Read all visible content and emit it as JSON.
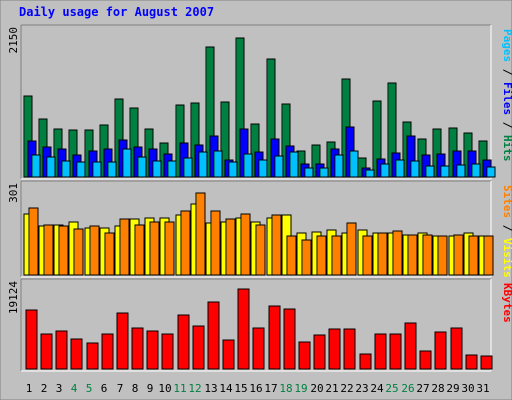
{
  "chart_data": {
    "type": "bar",
    "title": "Daily usage for August 2007",
    "days": [
      "1",
      "2",
      "3",
      "4",
      "5",
      "6",
      "7",
      "8",
      "9",
      "10",
      "11",
      "12",
      "13",
      "14",
      "15",
      "16",
      "17",
      "18",
      "19",
      "20",
      "21",
      "22",
      "23",
      "24",
      "25",
      "26",
      "27",
      "28",
      "29",
      "30",
      "31"
    ],
    "weekend_days": [
      "4",
      "5",
      "11",
      "12",
      "18",
      "19",
      "25",
      "26"
    ],
    "panels": [
      {
        "id": "top",
        "ymax_label": "2150",
        "ymax": 2150,
        "series_labels": [
          "Pages",
          "Files",
          "Hits"
        ],
        "series": [
          {
            "name": "Hits",
            "color": "#008040",
            "values": [
              1220,
              880,
              720,
              710,
              710,
              790,
              1180,
              1050,
              720,
              510,
              1090,
              1120,
              1970,
              1130,
              2110,
              810,
              1780,
              1110,
              400,
              480,
              530,
              1480,
              290,
              1150,
              1430,
              830,
              570,
              720,
              740,
              660,
              540
            ]
          },
          {
            "name": "Files",
            "color": "#0000ff",
            "values": [
              550,
              460,
              420,
              340,
              400,
              430,
              560,
              450,
              430,
              350,
              520,
              480,
              620,
              260,
              730,
              380,
              580,
              470,
              200,
              190,
              420,
              760,
              130,
              270,
              370,
              620,
              340,
              350,
              400,
              390,
              260
            ]
          },
          {
            "name": "Pages",
            "color": "#00c0ff",
            "values": [
              330,
              300,
              240,
              230,
              220,
              220,
              430,
              310,
              240,
              240,
              290,
              380,
              390,
              220,
              350,
              260,
              320,
              380,
              140,
              130,
              330,
              390,
              100,
              200,
              260,
              240,
              160,
              160,
              180,
              190,
              150
            ]
          }
        ]
      },
      {
        "id": "middle",
        "ymax_label": "301",
        "ymax": 301,
        "series_labels": [
          "Sites",
          "Visits"
        ],
        "series": [
          {
            "name": "Visits",
            "color": "#ffff00",
            "values": [
              220,
              175,
              180,
              190,
              170,
              170,
              175,
              200,
              205,
              205,
              215,
              255,
              185,
              190,
              205,
              190,
              205,
              215,
              150,
              155,
              160,
              150,
              160,
              150,
              150,
              145,
              150,
              140,
              140,
              150,
              140
            ]
          },
          {
            "name": "Sites",
            "color": "#ff8000",
            "values": [
              240,
              180,
              175,
              165,
              175,
              150,
              200,
              180,
              190,
              190,
              230,
              294,
              230,
              200,
              220,
              180,
              215,
              140,
              125,
              140,
              140,
              188,
              140,
              150,
              156,
              145,
              145,
              140,
              145,
              140,
              140
            ]
          }
        ]
      },
      {
        "id": "bottom",
        "ymax_label": "19124",
        "ymax": 19124,
        "series_labels": [
          "KBytes"
        ],
        "series": [
          {
            "name": "KBytes",
            "color": "#ff0000",
            "values": [
              14200,
              8400,
              9200,
              7200,
              6300,
              8400,
              13300,
              9800,
              9200,
              8400,
              13000,
              10200,
              16000,
              7000,
              19124,
              9700,
              15000,
              14400,
              6400,
              8100,
              9600,
              9600,
              3500,
              8400,
              8400,
              11000,
              4400,
              8800,
              9700,
              3400,
              3200
            ]
          }
        ]
      }
    ],
    "colors": {
      "background": "#c0c0c0",
      "title": "#0000ff",
      "legend_sep": "#000000",
      "weekday_label": "#000000",
      "weekend_label": "#008040"
    }
  }
}
